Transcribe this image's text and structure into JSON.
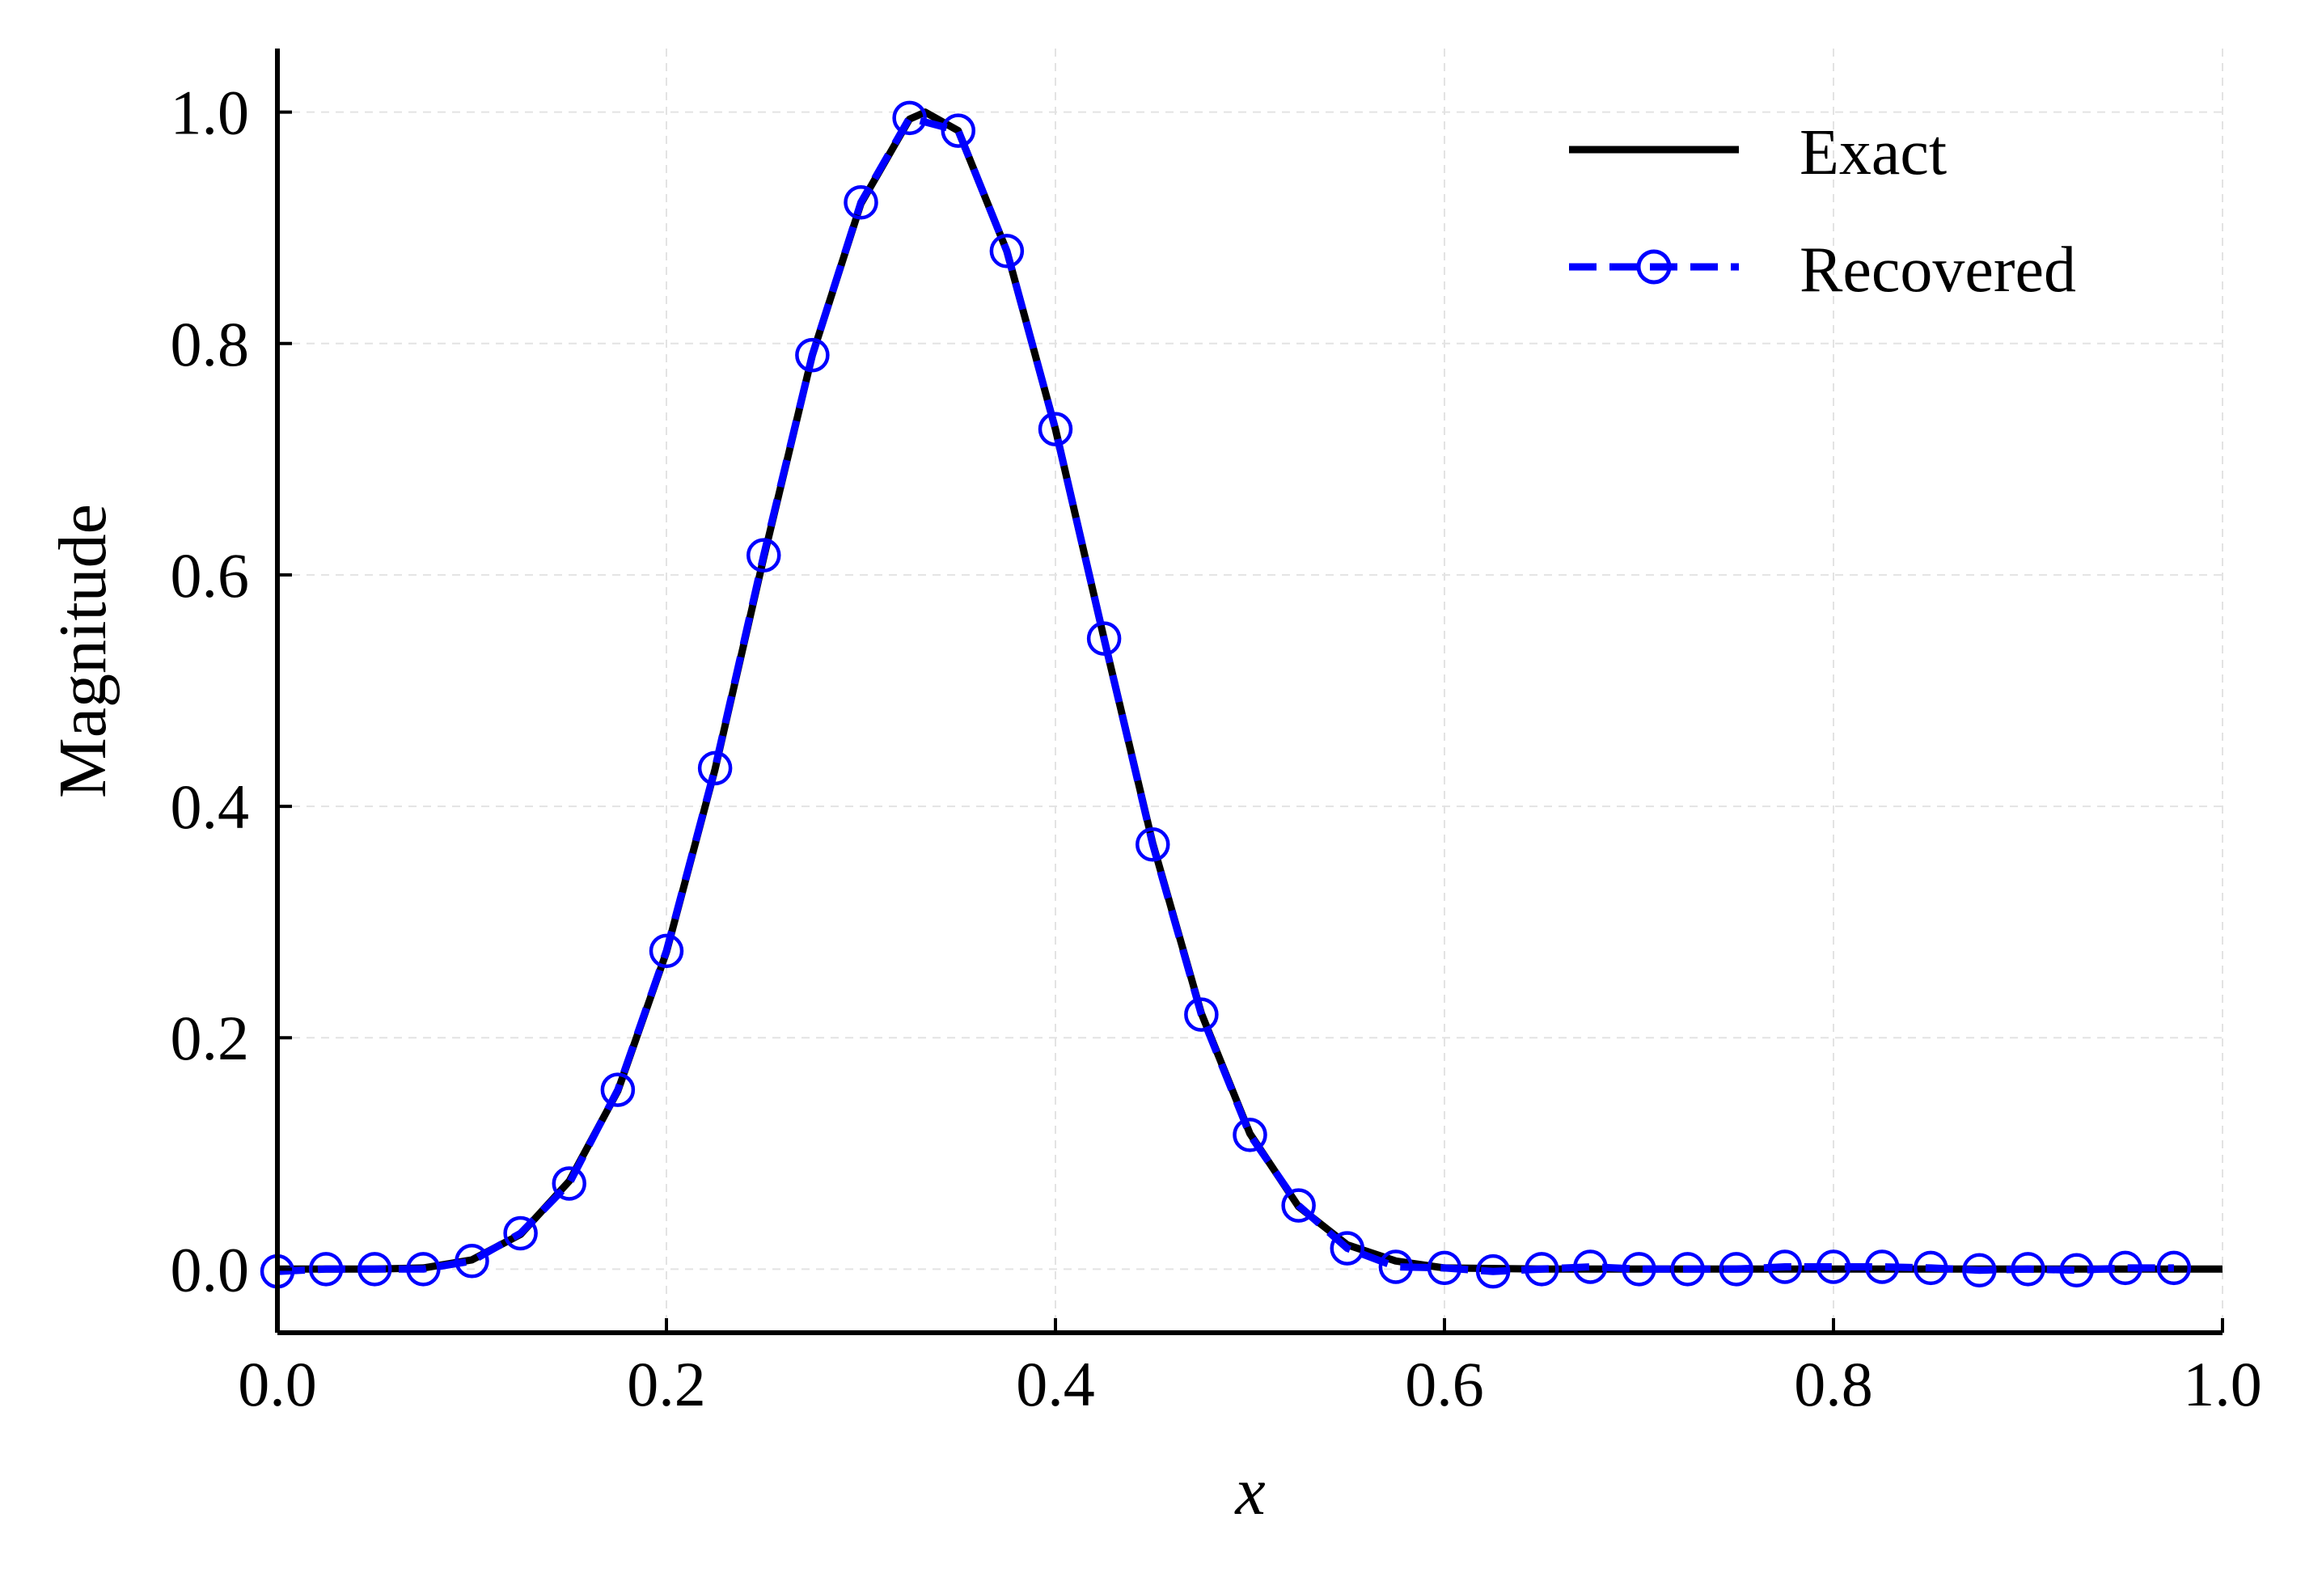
{
  "colors": {
    "exact": "#000000",
    "recovered": "#0000ff",
    "grid": "#e3e3e3",
    "axes": "#000000",
    "background": "#ffffff"
  },
  "chart_data": {
    "type": "line",
    "title": "",
    "xlabel": "x",
    "ylabel": "Magnitude",
    "xlim": [
      0.0,
      1.0
    ],
    "ylim": [
      -0.055,
      1.055
    ],
    "xticks": [
      "0.0",
      "0.2",
      "0.4",
      "0.6",
      "0.8",
      "1.0"
    ],
    "yticks": [
      "0.0",
      "0.2",
      "0.4",
      "0.6",
      "0.8",
      "1.0"
    ],
    "xtick_values": [
      0.0,
      0.2,
      0.4,
      0.6,
      0.8,
      1.0
    ],
    "ytick_values": [
      0.0,
      0.2,
      0.4,
      0.6,
      0.8,
      1.0
    ],
    "grid": true,
    "grid_style": "dashed",
    "legend_position": "top-right",
    "legend": [
      "Exact",
      "Recovered"
    ],
    "series": [
      {
        "name": "Exact",
        "style": "solid",
        "color": "#000000",
        "x": [
          0.0,
          0.025,
          0.05,
          0.075,
          0.1,
          0.125,
          0.15,
          0.175,
          0.2,
          0.225,
          0.25,
          0.275,
          0.3,
          0.325,
          0.333,
          0.35,
          0.375,
          0.4,
          0.425,
          0.45,
          0.475,
          0.5,
          0.525,
          0.55,
          0.575,
          0.6,
          0.65,
          0.7,
          0.8,
          0.9,
          1.0
        ],
        "y": [
          0.0,
          0.0,
          0.0,
          0.001,
          0.008,
          0.03,
          0.076,
          0.154,
          0.274,
          0.432,
          0.615,
          0.79,
          0.921,
          0.994,
          1.0,
          0.984,
          0.88,
          0.726,
          0.545,
          0.368,
          0.221,
          0.117,
          0.054,
          0.021,
          0.007,
          0.001,
          0.0,
          0.0,
          0.0,
          0.0,
          0.0
        ]
      },
      {
        "name": "Recovered",
        "style": "dashed",
        "marker": "open-circle",
        "color": "#0000ff",
        "x": [
          0.0,
          0.025,
          0.05,
          0.075,
          0.1,
          0.125,
          0.15,
          0.175,
          0.2,
          0.225,
          0.25,
          0.275,
          0.3,
          0.325,
          0.35,
          0.375,
          0.4,
          0.425,
          0.45,
          0.475,
          0.5,
          0.525,
          0.55,
          0.575,
          0.6,
          0.625,
          0.65,
          0.675,
          0.7,
          0.725,
          0.75,
          0.775,
          0.8,
          0.825,
          0.85,
          0.875,
          0.9,
          0.925,
          0.95,
          0.975
        ],
        "y": [
          -0.002,
          0.0,
          0.0,
          0.0,
          0.007,
          0.031,
          0.074,
          0.155,
          0.275,
          0.433,
          0.617,
          0.79,
          0.922,
          0.995,
          0.984,
          0.88,
          0.726,
          0.545,
          0.367,
          0.22,
          0.116,
          0.055,
          0.018,
          0.002,
          0.001,
          -0.002,
          0.0,
          0.002,
          0.0,
          0.0,
          0.0,
          0.002,
          0.002,
          0.002,
          0.001,
          -0.001,
          0.0,
          -0.001,
          0.001,
          0.001
        ]
      }
    ]
  }
}
